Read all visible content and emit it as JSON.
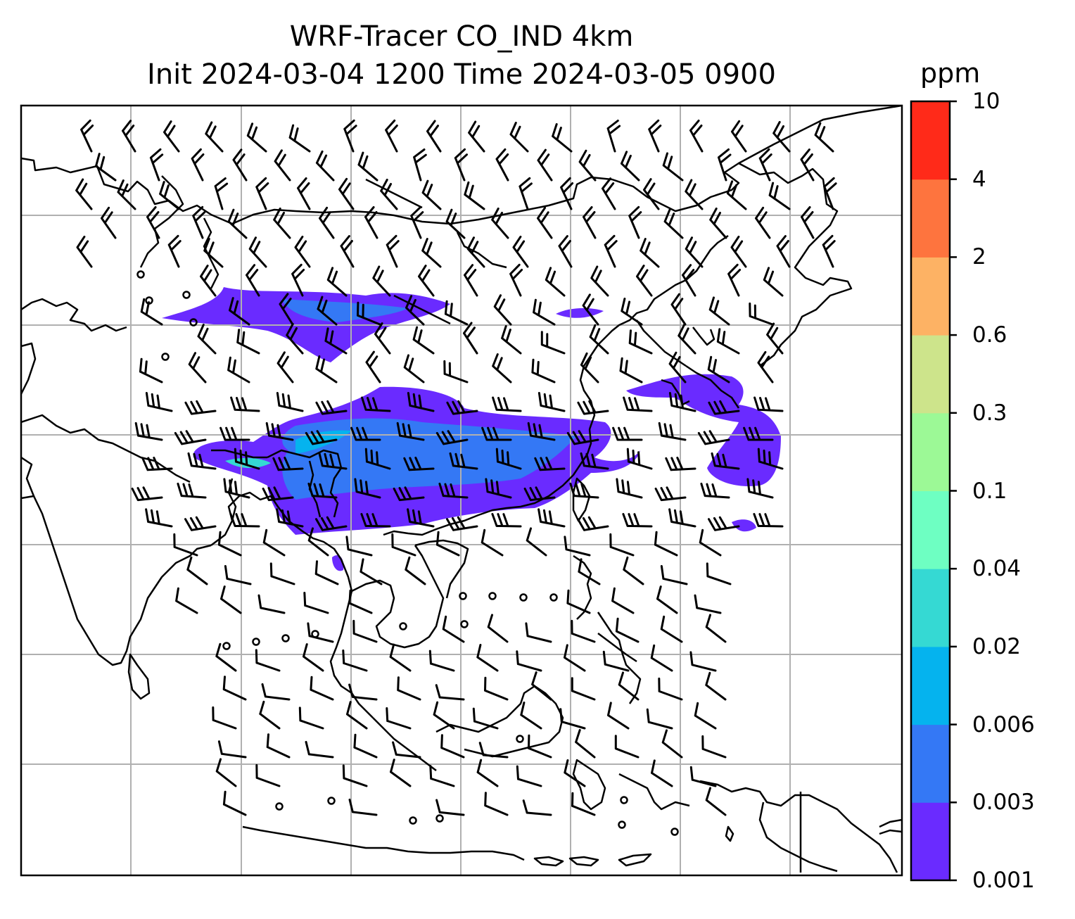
{
  "title": {
    "line1": "WRF-Tracer CO_IND 4km",
    "line2": "Init 2024-03-04 1200 Time 2024-03-05 0900"
  },
  "colorbar": {
    "unit": "ppm",
    "levels": [
      "0.001",
      "0.003",
      "0.006",
      "0.02",
      "0.04",
      "0.1",
      "0.3",
      "0.6",
      "2",
      "4",
      "10"
    ],
    "colors": [
      "#6a2bff",
      "#3478f5",
      "#05b3ee",
      "#35d9d3",
      "#6effc2",
      "#9cf996",
      "#cde48b",
      "#fdb264",
      "#fe743e",
      "#ff2a19"
    ]
  },
  "map": {
    "gridline_color": "#b0b0b0",
    "coastline_color": "#000000",
    "barb_color": "#000000",
    "tracer_levels_shown": [
      "0.001",
      "0.003",
      "0.006",
      "0.02"
    ]
  }
}
